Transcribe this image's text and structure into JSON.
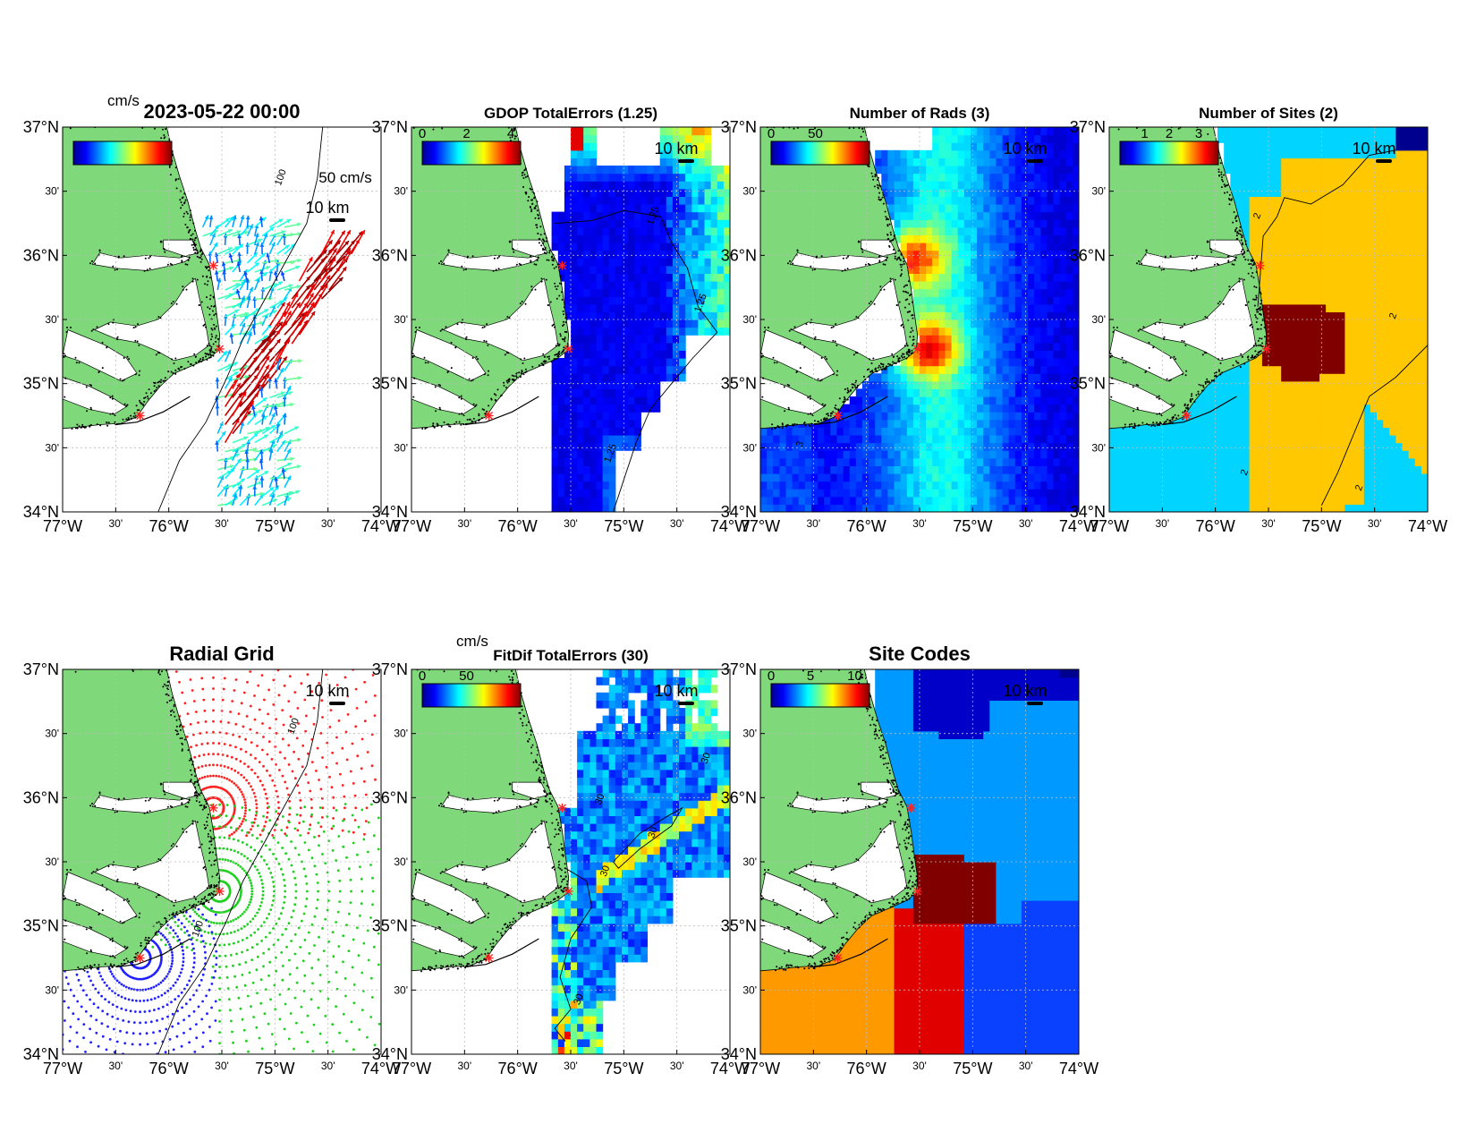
{
  "figure": {
    "land_color": "#7fd97a",
    "water_color": "#ffffff",
    "site_marker_color": "#ff2020",
    "grid_line_color": "#bbbbbb",
    "colormap": "jet"
  },
  "chart_data": [
    {
      "id": "totals",
      "type": "quiver",
      "title": "2023-05-22 00:00",
      "colorbar": {
        "label": "cm/s",
        "ticks": []
      },
      "scale_label": "50 cm/s",
      "km_label": "10 km",
      "contour_labels": [
        "100"
      ],
      "layer": "vectors"
    },
    {
      "id": "gdop",
      "type": "heatmap",
      "title": "GDOP TotalErrors (1.25)",
      "colorbar": {
        "label": "",
        "ticks": [
          "0",
          "2",
          "4"
        ]
      },
      "km_label": "10 km",
      "contour_labels": [
        "1.25",
        "1.25",
        "1.25"
      ],
      "layer": "gdop"
    },
    {
      "id": "nrads",
      "type": "heatmap",
      "title": "Number of Rads (3)",
      "colorbar": {
        "label": "",
        "ticks": [
          "0",
          "50"
        ]
      },
      "km_label": "10 km",
      "contour_labels": [
        "3"
      ],
      "layer": "rads"
    },
    {
      "id": "nsites",
      "type": "heatmap",
      "title": "Number of Sites (2)",
      "colorbar": {
        "label": "",
        "ticks": [
          "1",
          "2",
          "3"
        ]
      },
      "km_label": "10 km",
      "contour_labels": [
        "2",
        "2",
        "2",
        "2"
      ],
      "layer": "sites"
    },
    {
      "id": "radgrid",
      "type": "scatter",
      "title": "Radial Grid",
      "colorbar": null,
      "km_label": "10 km",
      "contour_labels": [
        "100",
        "100"
      ],
      "layer": "radgrid"
    },
    {
      "id": "fitdif",
      "type": "heatmap",
      "title": "FitDif TotalErrors (30)",
      "colorbar": {
        "label": "cm/s",
        "ticks": [
          "0",
          "50"
        ]
      },
      "km_label": "10 km",
      "contour_labels": [
        "30",
        "30",
        "30",
        "30",
        "30"
      ],
      "layer": "fitdif"
    },
    {
      "id": "sitecodes",
      "type": "heatmap",
      "title": "Site Codes",
      "colorbar": {
        "label": "",
        "ticks": [
          "0",
          "5",
          "10"
        ]
      },
      "km_label": "10 km",
      "contour_labels": [],
      "layer": "codes"
    }
  ],
  "axes": {
    "xlim": [
      -77,
      -74
    ],
    "ylim": [
      34,
      37
    ],
    "xticks": [
      {
        "lon": -77,
        "label": "77°W",
        "major": true
      },
      {
        "lon": -76.5,
        "label": "30'",
        "major": false
      },
      {
        "lon": -76,
        "label": "76°W",
        "major": true
      },
      {
        "lon": -75.5,
        "label": "30'",
        "major": false
      },
      {
        "lon": -75,
        "label": "75°W",
        "major": true
      },
      {
        "lon": -74.5,
        "label": "30'",
        "major": false
      },
      {
        "lon": -74,
        "label": "74°W",
        "major": true
      }
    ],
    "yticks": [
      {
        "lat": 37,
        "label": "37°N",
        "major": true
      },
      {
        "lat": 36.5,
        "label": "30'",
        "major": false
      },
      {
        "lat": 36,
        "label": "36°N",
        "major": true
      },
      {
        "lat": 35.5,
        "label": "30'",
        "major": false
      },
      {
        "lat": 35,
        "label": "35°N",
        "major": true
      },
      {
        "lat": 34.5,
        "label": "30'",
        "major": false
      },
      {
        "lat": 34,
        "label": "34°N",
        "major": true
      }
    ]
  },
  "radar_sites": [
    {
      "lon": -75.58,
      "lat": 35.92
    },
    {
      "lon": -75.52,
      "lat": 35.27
    },
    {
      "lon": -76.27,
      "lat": 34.75
    }
  ]
}
